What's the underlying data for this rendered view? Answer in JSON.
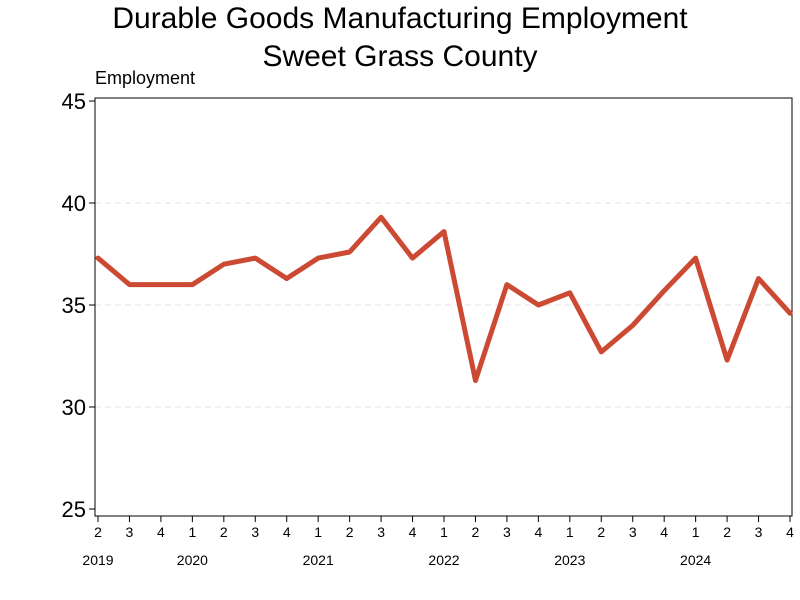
{
  "chart_data": {
    "type": "line",
    "title": "Durable Goods Manufacturing Employment",
    "subtitle": "Sweet Grass County",
    "ylabel": "Employment",
    "xlabel": "",
    "ylim": [
      25,
      45
    ],
    "yticks": [
      25,
      30,
      35,
      40,
      45
    ],
    "grid": true,
    "quarters": [
      "2",
      "3",
      "4",
      "1",
      "2",
      "3",
      "4",
      "1",
      "2",
      "3",
      "4",
      "1",
      "2",
      "3",
      "4",
      "1",
      "2",
      "3",
      "4",
      "1",
      "2",
      "3",
      "4"
    ],
    "years": [
      {
        "label": "2019",
        "index": 0
      },
      {
        "label": "2020",
        "index": 3
      },
      {
        "label": "2021",
        "index": 7
      },
      {
        "label": "2022",
        "index": 11
      },
      {
        "label": "2023",
        "index": 15
      },
      {
        "label": "2024",
        "index": 19
      }
    ],
    "series": [
      {
        "name": "Employment",
        "color": "#cc4a33",
        "values": [
          37.3,
          36.0,
          36.0,
          36.0,
          37.0,
          37.3,
          36.3,
          37.3,
          37.6,
          39.3,
          37.3,
          38.6,
          31.3,
          36.0,
          35.0,
          35.6,
          32.7,
          34.0,
          35.7,
          37.3,
          32.3,
          36.3,
          34.6
        ]
      }
    ]
  }
}
